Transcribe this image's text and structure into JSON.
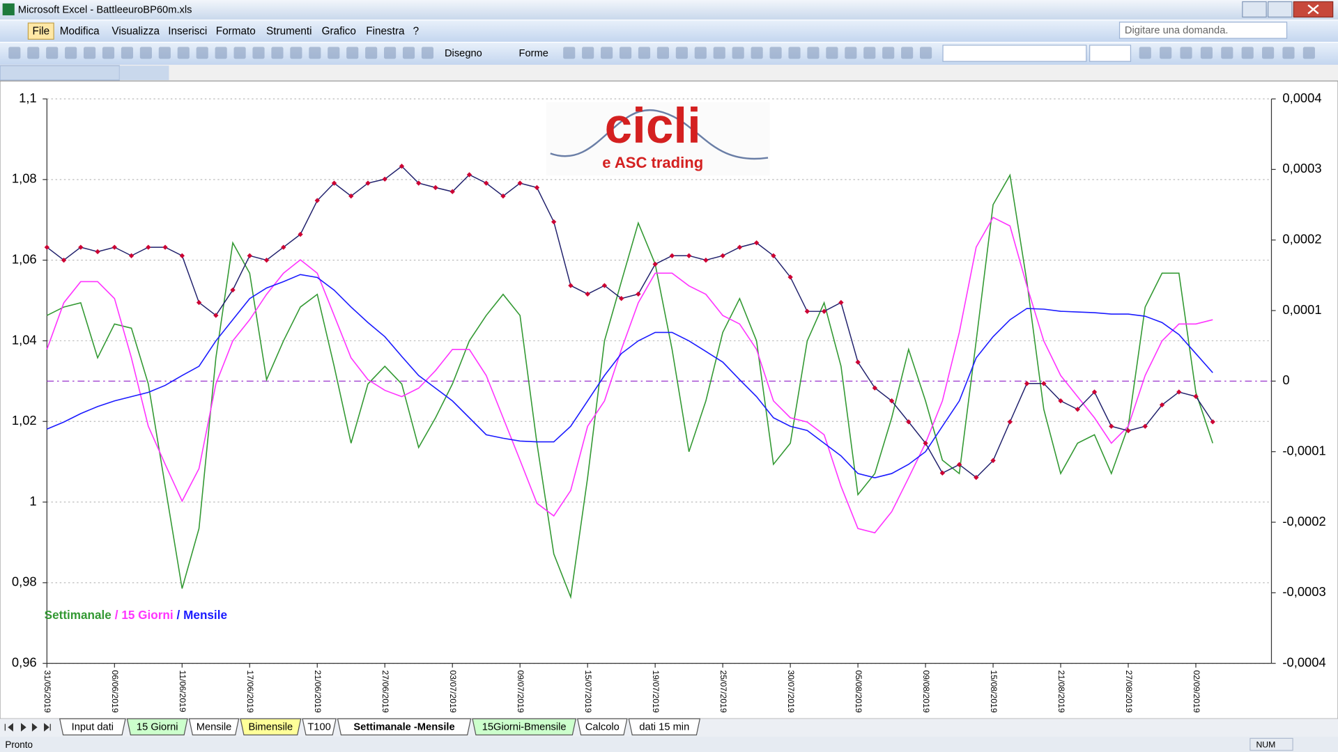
{
  "window": {
    "title": "Microsoft Excel - BattleeuroBP60m.xls"
  },
  "menu": [
    "File",
    "Modifica",
    "Visualizza",
    "Inserisci",
    "Formato",
    "Strumenti",
    "Grafico",
    "Finestra",
    "?"
  ],
  "help_box": "Digitare una domanda.",
  "toolbar": {
    "drawing": "Disegno",
    "shapes": "Forme"
  },
  "sheet_tabs": [
    {
      "label": "Input dati",
      "color": "#ffffff"
    },
    {
      "label": "15 Giorni",
      "color": "#ccffcc"
    },
    {
      "label": "Mensile",
      "color": "#ffffff"
    },
    {
      "label": "Bimensile",
      "color": "#ffff99"
    },
    {
      "label": "T100",
      "color": "#ffffff"
    },
    {
      "label": "Settimanale -Mensile",
      "color": "#ffffff"
    },
    {
      "label": "15Giorni-Bmensile",
      "color": "#ccffcc"
    },
    {
      "label": "Calcolo",
      "color": "#ffffff"
    },
    {
      "label": "dati 15 min",
      "color": "#ffffff"
    }
  ],
  "active_tab": 5,
  "status": {
    "left": "Pronto",
    "num": "NUM"
  },
  "logo": {
    "title": "cicli",
    "subtitle": "e ASC trading"
  },
  "chart_data": {
    "type": "line",
    "grid": true,
    "legend_separator": "/",
    "categories": [
      "31/05/2019",
      null,
      null,
      null,
      "06/06/2019",
      null,
      null,
      null,
      "11/06/2019",
      null,
      null,
      null,
      "17/06/2019",
      null,
      null,
      null,
      "21/06/2019",
      null,
      null,
      null,
      "27/06/2019",
      null,
      null,
      null,
      "03/07/2019",
      null,
      null,
      null,
      "09/07/2019",
      null,
      null,
      null,
      "15/07/2019",
      null,
      null,
      null,
      "19/07/2019",
      null,
      null,
      null,
      "25/07/2019",
      null,
      null,
      null,
      "30/07/2019",
      null,
      null,
      null,
      "05/08/2019",
      null,
      null,
      null,
      "09/08/2019",
      null,
      null,
      null,
      "15/08/2019",
      null,
      null,
      null,
      "21/08/2019",
      null,
      null,
      null,
      "27/08/2019",
      null,
      null,
      null,
      "02/09/2019",
      null
    ],
    "series": [
      {
        "name": "Settimanale",
        "color": "#339933",
        "axis": "y2",
        "values": [
          9.3e-05,
          0.000105,
          0.000111,
          3.3e-05,
          8.1e-05,
          7.5e-05,
          -4e-06,
          -0.000149,
          -0.000294,
          -0.000209,
          3.3e-05,
          0.000196,
          0.000153,
          2e-06,
          5.7e-05,
          0.000105,
          0.000123,
          2.1e-05,
          -8.8e-05,
          -4e-06,
          2.1e-05,
          -4e-06,
          -9.4e-05,
          -5.2e-05,
          -4e-06,
          5.7e-05,
          9.3e-05,
          0.000123,
          9.3e-05,
          -8.8e-05,
          -0.000245,
          -0.000306,
          -0.000137,
          5.7e-05,
          0.000141,
          0.000224,
          0.000166,
          4.5e-05,
          -0.0001,
          -2.8e-05,
          6.9e-05,
          0.000117,
          5.7e-05,
          -0.000118,
          -8.8e-05,
          5.7e-05,
          0.000111,
          2.1e-05,
          -0.000161,
          -0.000131,
          -5.2e-05,
          4.5e-05,
          -2.8e-05,
          -0.000112,
          -0.000131,
          5.7e-05,
          0.00025,
          0.000292,
          0.000141,
          -4e-05,
          -0.000131,
          -8.8e-05,
          -7.6e-05,
          -0.000131,
          -6.4e-05,
          0.000105,
          0.000153,
          0.000153,
          -1.6e-05,
          -8.8e-05
        ]
      },
      {
        "name": "15 Giorni",
        "color": "#ff33ff",
        "axis": "y2",
        "values": [
          4.5e-05,
          0.000111,
          0.000141,
          0.000141,
          0.000117,
          3.3e-05,
          -6.4e-05,
          -0.000118,
          -0.00017,
          -0.000124,
          -4e-06,
          5.7e-05,
          8.7e-05,
          0.000123,
          0.000153,
          0.000172,
          0.000153,
          9.3e-05,
          3.3e-05,
          2e-06,
          -1.3e-05,
          -2.2e-05,
          -1e-05,
          1.5e-05,
          4.5e-05,
          4.5e-05,
          8e-06,
          -5.2e-05,
          -0.000112,
          -0.000173,
          -0.000191,
          -0.000155,
          -6.4e-05,
          -2.8e-05,
          4.5e-05,
          0.000111,
          0.000153,
          0.000153,
          0.000135,
          0.000123,
          9.3e-05,
          8.1e-05,
          4.5e-05,
          -2.8e-05,
          -5.2e-05,
          -5.8e-05,
          -7.6e-05,
          -0.000149,
          -0.000209,
          -0.000215,
          -0.000185,
          -0.000137,
          -8.8e-05,
          -2.8e-05,
          6.9e-05,
          0.00019,
          0.000232,
          0.00022,
          0.000135,
          5.7e-05,
          8e-06,
          -2.2e-05,
          -5.2e-05,
          -8.8e-05,
          -6.4e-05,
          8e-06,
          5.7e-05,
          8.1e-05,
          8.1e-05,
          8.7e-05
        ]
      },
      {
        "name": "Mensile",
        "color": "#1a1aff",
        "axis": "y2",
        "values": [
          -6.8e-05,
          -5.8e-05,
          -4.6e-05,
          -3.6e-05,
          -2.8e-05,
          -2.2e-05,
          -1.6e-05,
          -6e-06,
          8e-06,
          2.1e-05,
          5.7e-05,
          8.7e-05,
          0.000117,
          0.000132,
          0.000141,
          0.000151,
          0.000147,
          0.000129,
          0.000105,
          8.3e-05,
          6.3e-05,
          3.5e-05,
          8e-06,
          -1e-05,
          -2.8e-05,
          -5.2e-05,
          -7.6e-05,
          -8.1e-05,
          -8.5e-05,
          -8.6e-05,
          -8.6e-05,
          -6.4e-05,
          -2.8e-05,
          8e-06,
          3.9e-05,
          5.7e-05,
          6.9e-05,
          6.9e-05,
          5.7e-05,
          4.2e-05,
          2.7e-05,
          2e-06,
          -2.2e-05,
          -5.2e-05,
          -6.4e-05,
          -7e-05,
          -8.8e-05,
          -0.000106,
          -0.000131,
          -0.000137,
          -0.000131,
          -0.000118,
          -0.0001,
          -6.4e-05,
          -2.8e-05,
          3.3e-05,
          6.3e-05,
          8.7e-05,
          0.000103,
          0.000102,
          9.9e-05,
          9.8e-05,
          9.7e-05,
          9.5e-05,
          9.5e-05,
          9.2e-05,
          8.3e-05,
          6.6e-05,
          3.9e-05,
          1.2e-05
        ]
      },
      {
        "color": "#1f1f6b",
        "marker_color": "#cc0033",
        "axis": "y",
        "values": [
          1.0632,
          1.06,
          1.0632,
          1.0621,
          1.0632,
          1.0611,
          1.0632,
          1.0632,
          1.0611,
          1.0495,
          1.0463,
          1.0526,
          1.0611,
          1.06,
          1.0632,
          1.0664,
          1.0748,
          1.0791,
          1.0759,
          1.0791,
          1.0801,
          1.0833,
          1.0791,
          1.078,
          1.077,
          1.0812,
          1.0791,
          1.0759,
          1.0791,
          1.078,
          1.0695,
          1.0537,
          1.0516,
          1.0537,
          1.0505,
          1.0516,
          1.059,
          1.0611,
          1.0611,
          1.06,
          1.0611,
          1.0632,
          1.0643,
          1.0611,
          1.0558,
          1.0473,
          1.0473,
          1.0495,
          1.0347,
          1.0283,
          1.0251,
          1.0199,
          1.0146,
          1.0072,
          1.0093,
          1.0061,
          1.0103,
          1.0199,
          1.0294,
          1.0294,
          1.0251,
          1.023,
          1.0273,
          1.0188,
          1.0177,
          1.0188,
          1.0241,
          1.0273,
          1.0262,
          1.0199
        ]
      }
    ],
    "ylim": [
      0.96,
      1.1
    ],
    "yticks": [
      {
        "value": 0.96,
        "label": "0,96"
      },
      {
        "value": 0.98,
        "label": "0,98"
      },
      1,
      {
        "value": 1.02,
        "label": "1,02"
      },
      {
        "value": 1.04,
        "label": "1,04"
      },
      {
        "value": 1.06,
        "label": "1,06"
      },
      {
        "value": 1.08,
        "label": "1,08"
      },
      {
        "value": 1.1,
        "label": "1,1"
      }
    ],
    "y2lim": [
      -0.0004,
      0.0004
    ],
    "y2ticks": [
      {
        "value": -0.0004,
        "label": "-0,0004"
      },
      {
        "value": -0.0003,
        "label": "-0,0003"
      },
      {
        "value": -0.0002,
        "label": "-0,0002"
      },
      {
        "value": -0.0001,
        "label": "-0,0001"
      },
      0,
      {
        "value": 0.0001,
        "label": "0,0001"
      },
      {
        "value": 0.0002,
        "label": "0,0002"
      },
      {
        "value": 0.0003,
        "label": "0,0003"
      },
      {
        "value": 0.0004,
        "label": "0,0004"
      }
    ],
    "hline": {
      "value": 0,
      "axis": "y2",
      "color": "#9933cc"
    }
  }
}
